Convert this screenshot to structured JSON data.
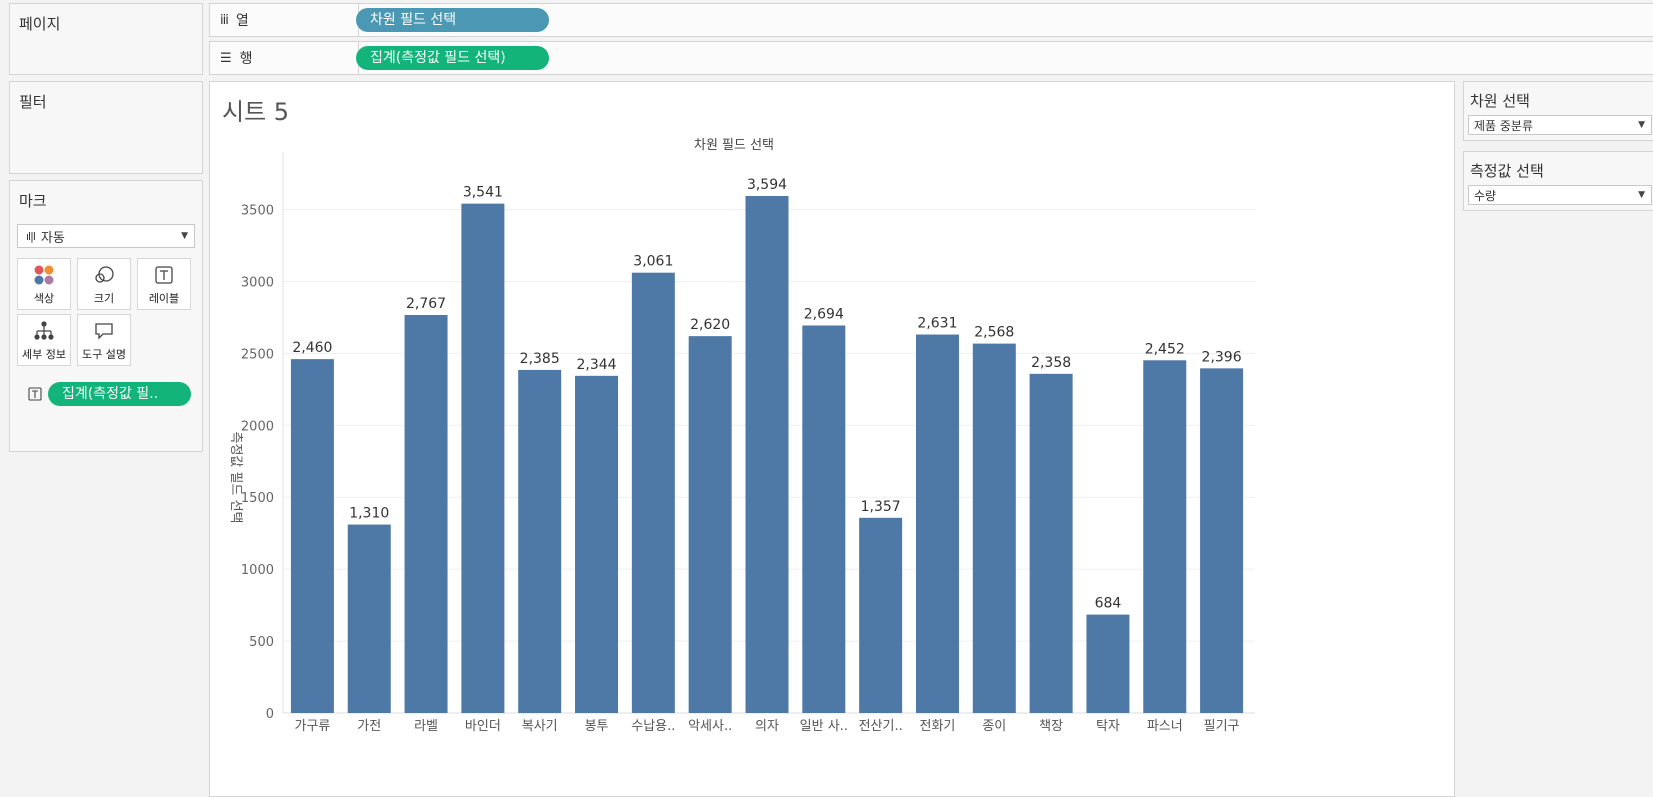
{
  "shelves": {
    "pages_label": "페이지",
    "columns_label": "열",
    "columns_pill": "차원 필드 선택",
    "rows_label": "행",
    "rows_pill": "집계(측정값 필드 선택)"
  },
  "filters": {
    "title": "필터"
  },
  "marks": {
    "title": "마크",
    "mark_type": "자동",
    "buttons": {
      "color": "색상",
      "size": "크기",
      "label": "레이블",
      "detail": "세부 정보",
      "tooltip": "도구 설명"
    },
    "label_pill": "집계(측정값 필..",
    "colors": {
      "dot1": "#e15759",
      "dot2": "#4e79a7",
      "dot3": "#af7aa1",
      "dot4": "#f28e2b"
    }
  },
  "sheet": {
    "title": "시트 5"
  },
  "params": {
    "dimension_title": "차원 선택",
    "dimension_value": "제품 중분류",
    "measure_title": "측정값 선택",
    "measure_value": "수량"
  },
  "chart_data": {
    "type": "bar",
    "title": "차원 필드 선택",
    "ylabel": "측정값 필드 선택",
    "categories": [
      "가구류",
      "가전",
      "라벨",
      "바인더",
      "복사기",
      "봉투",
      "수납용..",
      "악세사..",
      "의자",
      "일반 사..",
      "전산기..",
      "전화기",
      "종이",
      "책장",
      "탁자",
      "파스너",
      "필기구"
    ],
    "values": [
      2460,
      1310,
      2767,
      3541,
      2385,
      2344,
      3061,
      2620,
      3594,
      2694,
      1357,
      2631,
      2568,
      2358,
      684,
      2452,
      2396
    ],
    "data_labels": [
      "2,460",
      "1,310",
      "2,767",
      "3,541",
      "2,385",
      "2,344",
      "3,061",
      "2,620",
      "3,594",
      "2,694",
      "1,357",
      "2,631",
      "2,568",
      "2,358",
      "684",
      "2,452",
      "2,396"
    ],
    "yticks": [
      "0",
      "500",
      "1000",
      "1500",
      "2000",
      "2500",
      "3000",
      "3500"
    ],
    "ylim": [
      0,
      3900
    ],
    "grid": true,
    "bar_color": "#4e79a7"
  }
}
